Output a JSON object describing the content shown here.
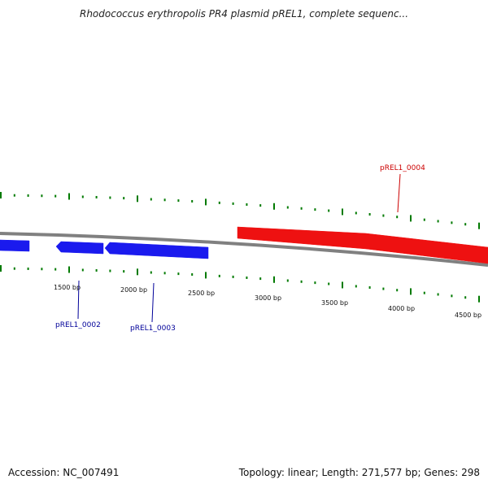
{
  "title": "Rhodococcus erythropolis PR4 plasmid pREL1, complete sequenc...",
  "footer": {
    "accession": "Accession: NC_007491",
    "info": "Topology: linear; Length: 271,577 bp; Genes: 298"
  },
  "colors": {
    "backbone": "#808080",
    "tick": "#007a00",
    "forward_gene": "#ee1111",
    "reverse_gene": "#1a1aee",
    "forward_label": "#cc0000",
    "reverse_label": "#000099"
  },
  "ruler_labels": [
    "1500 bp",
    "2000 bp",
    "2500 bp",
    "3000 bp",
    "3500 bp",
    "4000 bp",
    "4500 bp"
  ],
  "genes": [
    {
      "strand": "reverse",
      "label": ""
    },
    {
      "strand": "reverse",
      "label": "pREL1_0002"
    },
    {
      "strand": "reverse",
      "label": "pREL1_0003"
    },
    {
      "strand": "forward",
      "label": "pREL1_0004"
    }
  ]
}
